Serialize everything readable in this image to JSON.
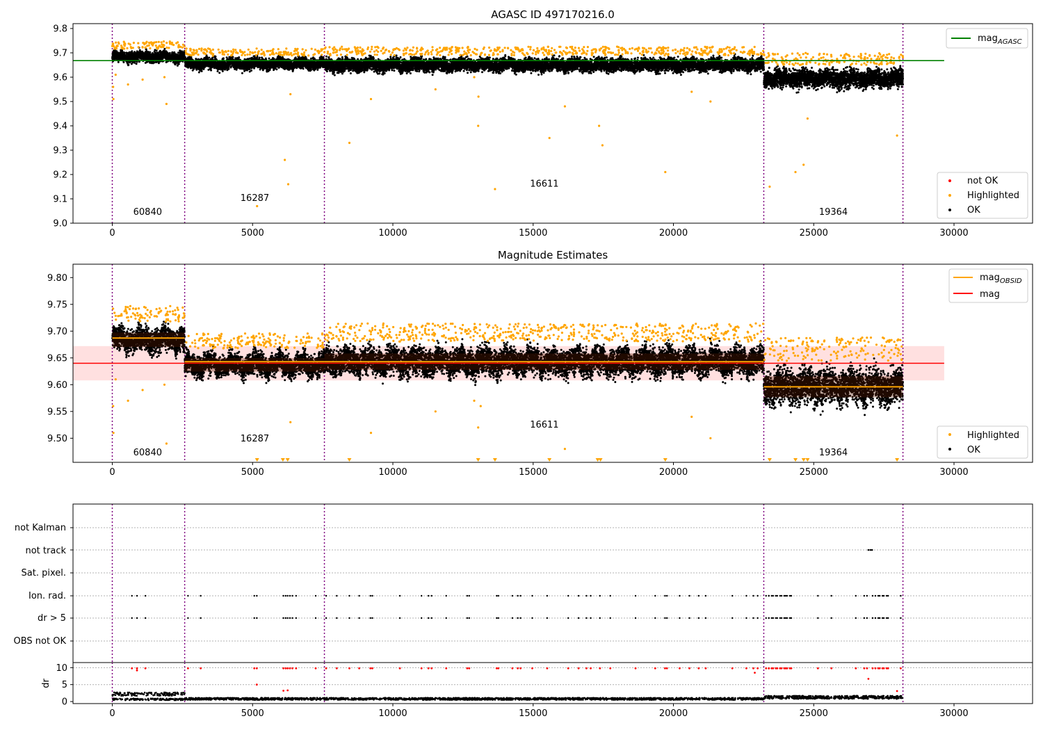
{
  "chart_data": [
    {
      "id": "agasc",
      "type": "scatter",
      "title": "AGASC ID 497170216.0",
      "xlim": [
        -1400,
        32800
      ],
      "ylim": [
        9.0,
        9.82
      ],
      "xticks": [
        0,
        5000,
        10000,
        15000,
        20000,
        25000,
        30000
      ],
      "yticks": [
        9.0,
        9.1,
        9.2,
        9.3,
        9.4,
        9.5,
        9.6,
        9.7,
        9.8
      ],
      "ytick_labels": [
        "9.0",
        "9.1",
        "9.2",
        "9.3",
        "9.4",
        "9.5",
        "9.6",
        "9.7",
        "9.8"
      ],
      "vlines": [
        0,
        2580,
        7560,
        23220,
        28180
      ],
      "mag_agasc": 9.668,
      "mag_agasc_extent": [
        -1400,
        29650
      ],
      "obsid_labels": [
        {
          "x": 1260,
          "y": 9.035,
          "text": "60840"
        },
        {
          "x": 5080,
          "y": 9.092,
          "text": "16287"
        },
        {
          "x": 15400,
          "y": 9.15,
          "text": "16611"
        },
        {
          "x": 25700,
          "y": 9.035,
          "text": "19364"
        }
      ],
      "segments": [
        {
          "x0": 0,
          "x1": 2580,
          "center": 9.684,
          "spread": 0.015
        },
        {
          "x0": 2580,
          "x1": 7560,
          "center": 9.655,
          "spread": 0.015
        },
        {
          "x0": 7560,
          "x1": 23220,
          "center": 9.65,
          "spread": 0.018
        },
        {
          "x0": 23220,
          "x1": 28180,
          "center": 9.595,
          "spread": 0.025
        }
      ],
      "highlighted_outliers": [
        [
          30,
          9.56
        ],
        [
          40,
          9.51
        ],
        [
          120,
          9.61
        ],
        [
          560,
          9.57
        ],
        [
          1080,
          9.59
        ],
        [
          1860,
          9.6
        ],
        [
          1930,
          9.49
        ],
        [
          6150,
          9.26
        ],
        [
          6270,
          9.16
        ],
        [
          6350,
          9.53
        ],
        [
          5160,
          9.07
        ],
        [
          8450,
          9.33
        ],
        [
          9220,
          9.51
        ],
        [
          11520,
          9.55
        ],
        [
          12900,
          9.6
        ],
        [
          13050,
          9.52
        ],
        [
          13040,
          9.4
        ],
        [
          13640,
          9.14
        ],
        [
          15580,
          9.35
        ],
        [
          16130,
          9.48
        ],
        [
          17350,
          9.4
        ],
        [
          17470,
          9.32
        ],
        [
          19710,
          9.21
        ],
        [
          20650,
          9.54
        ],
        [
          21320,
          9.5
        ],
        [
          23430,
          9.15
        ],
        [
          24350,
          9.21
        ],
        [
          24640,
          9.24
        ],
        [
          24780,
          9.43
        ],
        [
          27970,
          9.36
        ]
      ],
      "legend": [
        {
          "label": "mag",
          "sub": "AGASC",
          "color": "#008000",
          "kind": "line"
        },
        {
          "label": "not OK",
          "color": "#ff0000",
          "kind": "dot"
        },
        {
          "label": "Highlighted",
          "color": "#ffa500",
          "kind": "dot"
        },
        {
          "label": "OK",
          "color": "#000000",
          "kind": "dot"
        }
      ]
    },
    {
      "id": "estimates",
      "type": "scatter",
      "title": "Magnitude Estimates",
      "xlim": [
        -1400,
        32800
      ],
      "ylim": [
        9.455,
        9.825
      ],
      "xticks": [
        0,
        5000,
        10000,
        15000,
        20000,
        25000,
        30000
      ],
      "yticks": [
        9.5,
        9.55,
        9.6,
        9.65,
        9.7,
        9.75,
        9.8
      ],
      "ytick_labels": [
        "9.50",
        "9.55",
        "9.60",
        "9.65",
        "9.70",
        "9.75",
        "9.80"
      ],
      "vlines": [
        0,
        2580,
        7560,
        23220,
        28180
      ],
      "mag": 9.64,
      "mag_band": [
        9.608,
        9.672
      ],
      "mag_extent": [
        -1400,
        29650
      ],
      "mag_obsid": [
        {
          "x0": 0,
          "x1": 2580,
          "value": 9.687
        },
        {
          "x0": 2580,
          "x1": 7560,
          "value": 9.643
        },
        {
          "x0": 7560,
          "x1": 23220,
          "value": 9.643
        },
        {
          "x0": 23220,
          "x1": 28180,
          "value": 9.596
        }
      ],
      "obsid_labels": [
        {
          "x": 1260,
          "y": 9.468,
          "text": "60840"
        },
        {
          "x": 5080,
          "y": 9.494,
          "text": "16287"
        },
        {
          "x": 15400,
          "y": 9.52,
          "text": "16611"
        },
        {
          "x": 25700,
          "y": 9.468,
          "text": "19364"
        }
      ],
      "segments": [
        {
          "x0": 0,
          "x1": 2580,
          "center": 9.684,
          "spread": 0.015
        },
        {
          "x0": 2580,
          "x1": 7560,
          "center": 9.637,
          "spread": 0.014
        },
        {
          "x0": 7560,
          "x1": 23220,
          "center": 9.643,
          "spread": 0.017
        },
        {
          "x0": 23220,
          "x1": 28180,
          "center": 9.596,
          "spread": 0.022
        }
      ],
      "highlighted_outliers": [
        [
          30,
          9.56
        ],
        [
          40,
          9.51
        ],
        [
          120,
          9.61
        ],
        [
          560,
          9.57
        ],
        [
          1080,
          9.59
        ],
        [
          1860,
          9.6
        ],
        [
          1930,
          9.49
        ],
        [
          6350,
          9.53
        ],
        [
          9220,
          9.51
        ],
        [
          11520,
          9.55
        ],
        [
          12900,
          9.57
        ],
        [
          13040,
          9.52
        ],
        [
          13130,
          9.56
        ],
        [
          16130,
          9.48
        ],
        [
          20650,
          9.54
        ],
        [
          21320,
          9.5
        ]
      ],
      "below_range_markers": [
        5160,
        6080,
        6250,
        8450,
        13040,
        13640,
        15580,
        17300,
        17400,
        19710,
        23430,
        24350,
        24640,
        24780,
        27970
      ],
      "legend": [
        {
          "label": "mag",
          "sub": "OBSID",
          "color": "#ffa500",
          "kind": "line"
        },
        {
          "label": "mag",
          "color": "#ff0000",
          "kind": "line"
        },
        {
          "label": "Highlighted",
          "color": "#ffa500",
          "kind": "dot"
        },
        {
          "label": "OK",
          "color": "#000000",
          "kind": "dot"
        }
      ]
    },
    {
      "id": "flags",
      "type": "scatter",
      "xlim": [
        -1400,
        32800
      ],
      "categories": [
        "OBS not OK",
        "dr > 5",
        "Ion. rad.",
        "Sat. pixel.",
        "not track",
        "not Kalman"
      ],
      "vlines": [
        0,
        2580,
        7560,
        23220,
        28180
      ],
      "flag_times": [
        700,
        880,
        1180,
        2700,
        3150,
        5060,
        5150,
        6100,
        6180,
        6250,
        6330,
        6420,
        6550,
        7250,
        7620,
        8000,
        8450,
        8800,
        9200,
        9270,
        10250,
        11020,
        11270,
        11380,
        11900,
        12650,
        12720,
        13700,
        13760,
        14260,
        14450,
        14550,
        14970,
        15500,
        16250,
        16620,
        16900,
        17050,
        17380,
        17750,
        18650,
        19350,
        19700,
        19770,
        20220,
        20570,
        20900,
        21150,
        22100,
        22600,
        22850,
        23000,
        23400,
        23500,
        23650,
        23800,
        23950,
        24050,
        24200,
        25150,
        25630,
        26500,
        26800,
        27300,
        27450,
        27600,
        28100
      ],
      "not_track": [
        26950,
        27020,
        27080
      ]
    },
    {
      "id": "dr",
      "type": "scatter",
      "xlim": [
        -1400,
        32800
      ],
      "ylim": [
        -0.6,
        11.5
      ],
      "ylabel": "dr",
      "xticks": [
        0,
        5000,
        10000,
        15000,
        20000,
        25000,
        30000
      ],
      "yticks": [
        0,
        5,
        10
      ],
      "ytick_labels": [
        "0",
        "5",
        "10"
      ],
      "vlines": [
        0,
        2580,
        7560,
        23220,
        28180
      ],
      "red_outliers": [
        [
          880,
          9.2
        ],
        [
          6100,
          3.2
        ],
        [
          6250,
          3.3
        ],
        [
          5150,
          5.0
        ],
        [
          22900,
          8.5
        ],
        [
          26950,
          6.7
        ],
        [
          27970,
          3.1
        ]
      ]
    }
  ]
}
